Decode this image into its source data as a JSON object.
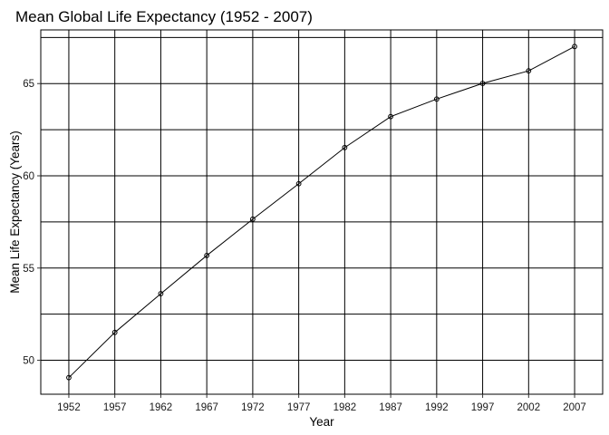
{
  "chart_data": {
    "type": "line",
    "title": "Mean Global Life Expectancy (1952 - 2007)",
    "xlabel": "Year",
    "ylabel": "Mean Life Expectancy (Years)",
    "x": [
      1952,
      1957,
      1962,
      1967,
      1972,
      1977,
      1982,
      1987,
      1992,
      1997,
      2002,
      2007
    ],
    "y": [
      49.06,
      51.51,
      53.61,
      55.68,
      57.65,
      59.57,
      61.53,
      63.21,
      64.16,
      65.01,
      65.69,
      67.01
    ],
    "xlim": [
      1948.95,
      2010.05
    ],
    "ylim": [
      48.16,
      67.91
    ],
    "x_ticks": [
      1952,
      1957,
      1962,
      1967,
      1972,
      1977,
      1982,
      1987,
      1992,
      1997,
      2002,
      2007
    ],
    "y_ticks": [
      50,
      55,
      60,
      65
    ],
    "y_minor_gridlines": [
      47.5,
      52.5,
      57.5,
      62.5,
      67.5
    ],
    "grid": true,
    "legend": "none",
    "line_color": "#000000"
  }
}
